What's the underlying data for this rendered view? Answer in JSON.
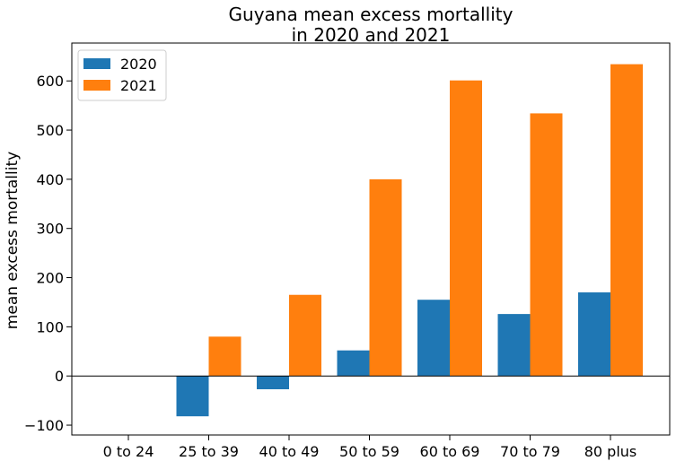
{
  "chart_data": {
    "type": "bar",
    "title_lines": [
      "Guyana mean excess mortallity",
      "in 2020 and 2021"
    ],
    "xlabel": "",
    "ylabel": "mean excess mortallity",
    "categories": [
      "0 to 24",
      "25 to 39",
      "40 to 49",
      "50 to 59",
      "60 to 69",
      "70 to 79",
      "80 plus"
    ],
    "series": [
      {
        "name": "2020",
        "color": "#1f77b4",
        "values": [
          0,
          -82,
          -27,
          52,
          155,
          126,
          170
        ]
      },
      {
        "name": "2021",
        "color": "#ff7f0e",
        "values": [
          0,
          80,
          165,
          400,
          601,
          534,
          634
        ]
      }
    ],
    "ylim": [
      -120,
      677
    ],
    "yticks": [
      -100,
      0,
      100,
      200,
      300,
      400,
      500,
      600
    ],
    "grid": false,
    "legend_position": "top-left",
    "zero_line": true
  }
}
